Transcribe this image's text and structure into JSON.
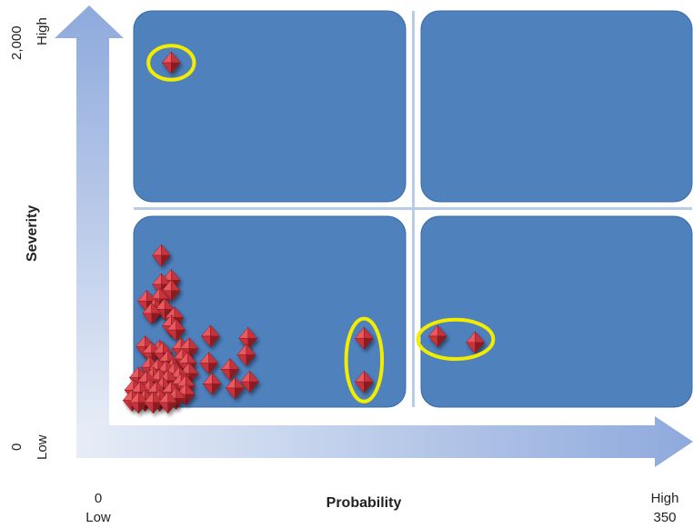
{
  "chart_data": {
    "type": "scatter",
    "xlabel": "Probability",
    "ylabel": "Severity",
    "x_min_value": "0",
    "x_min_word": "Low",
    "x_max_word": "High",
    "x_max_value": "350",
    "y_min_value": "0",
    "y_min_word": "Low",
    "y_max_value": "2,000",
    "y_max_word": "High",
    "xlim": [
      0,
      350
    ],
    "ylim": [
      0,
      2000
    ],
    "grid": false,
    "legend": "none",
    "quadrants": [
      "low-probability-high-severity",
      "high-probability-high-severity",
      "low-probability-low-severity",
      "high-probability-low-severity"
    ],
    "points": [
      {
        "x": 38,
        "y": 1750
      },
      {
        "x": 32,
        "y": 820
      },
      {
        "x": 38,
        "y": 700
      },
      {
        "x": 32,
        "y": 680
      },
      {
        "x": 31,
        "y": 610
      },
      {
        "x": 28,
        "y": 560
      },
      {
        "x": 23,
        "y": 600
      },
      {
        "x": 26,
        "y": 540
      },
      {
        "x": 34,
        "y": 560
      },
      {
        "x": 38,
        "y": 650
      },
      {
        "x": 40,
        "y": 520
      },
      {
        "x": 38,
        "y": 480
      },
      {
        "x": 41,
        "y": 460
      },
      {
        "x": 22,
        "y": 380
      },
      {
        "x": 26,
        "y": 350
      },
      {
        "x": 31,
        "y": 360
      },
      {
        "x": 33,
        "y": 350
      },
      {
        "x": 36,
        "y": 310
      },
      {
        "x": 44,
        "y": 370
      },
      {
        "x": 49,
        "y": 370
      },
      {
        "x": 25,
        "y": 280
      },
      {
        "x": 30,
        "y": 270
      },
      {
        "x": 35,
        "y": 260
      },
      {
        "x": 39,
        "y": 270
      },
      {
        "x": 45,
        "y": 320
      },
      {
        "x": 48,
        "y": 300
      },
      {
        "x": 18,
        "y": 230
      },
      {
        "x": 23,
        "y": 210
      },
      {
        "x": 27,
        "y": 230
      },
      {
        "x": 31,
        "y": 220
      },
      {
        "x": 36,
        "y": 215
      },
      {
        "x": 40,
        "y": 250
      },
      {
        "x": 43,
        "y": 230
      },
      {
        "x": 49,
        "y": 250
      },
      {
        "x": 15,
        "y": 170
      },
      {
        "x": 19,
        "y": 160
      },
      {
        "x": 25,
        "y": 170
      },
      {
        "x": 29,
        "y": 160
      },
      {
        "x": 33,
        "y": 180
      },
      {
        "x": 38,
        "y": 160
      },
      {
        "x": 44,
        "y": 200
      },
      {
        "x": 47,
        "y": 190
      },
      {
        "x": 14,
        "y": 120
      },
      {
        "x": 18,
        "y": 110
      },
      {
        "x": 22,
        "y": 120
      },
      {
        "x": 27,
        "y": 110
      },
      {
        "x": 31,
        "y": 120
      },
      {
        "x": 36,
        "y": 110
      },
      {
        "x": 41,
        "y": 130
      },
      {
        "x": 47,
        "y": 150
      },
      {
        "x": 62,
        "y": 430
      },
      {
        "x": 61,
        "y": 300
      },
      {
        "x": 63,
        "y": 200
      },
      {
        "x": 74,
        "y": 270
      },
      {
        "x": 77,
        "y": 180
      },
      {
        "x": 85,
        "y": 420
      },
      {
        "x": 84,
        "y": 340
      },
      {
        "x": 86,
        "y": 210
      },
      {
        "x": 156,
        "y": 420
      },
      {
        "x": 156,
        "y": 210
      },
      {
        "x": 201,
        "y": 430
      },
      {
        "x": 224,
        "y": 400
      }
    ],
    "highlight_groups": [
      {
        "x": 38,
        "y": 1750,
        "rx": 14,
        "ry": 82
      },
      {
        "x": 156,
        "y": 315,
        "rx": 11,
        "ry": 200
      },
      {
        "x": 212,
        "y": 415,
        "rx": 23,
        "ry": 95
      }
    ]
  },
  "colors": {
    "quadrant": "#4f81bd",
    "quadrant_edge": "#3a6aa6",
    "arrow_light": "#e7edf7",
    "arrow_dark": "#8ea9dc",
    "marker": "#c8323a",
    "marker_dark": "#8c1c22",
    "marker_light": "#e85a60",
    "highlight": "#f2ec00"
  }
}
